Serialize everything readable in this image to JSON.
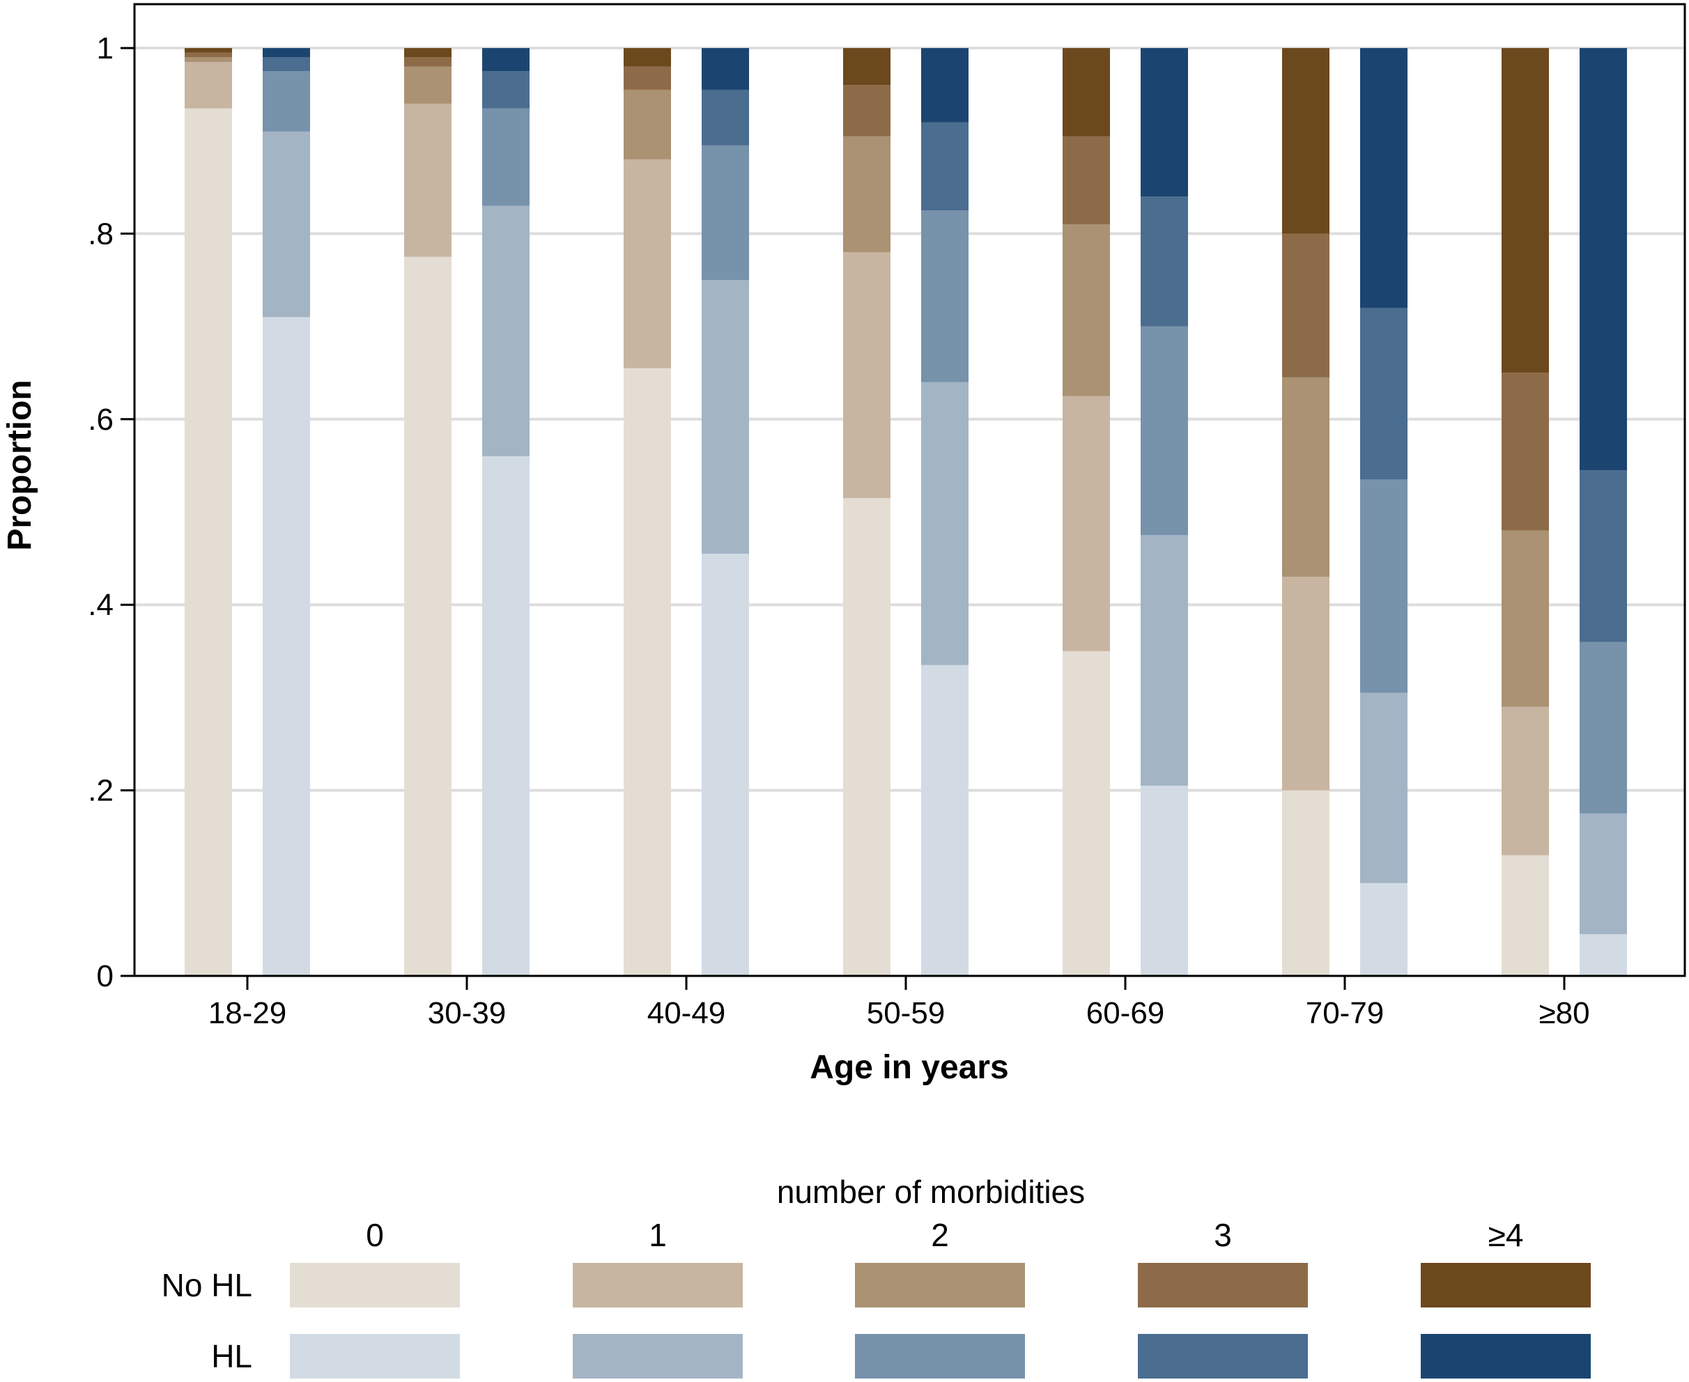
{
  "chart_data": {
    "type": "bar",
    "stacked": true,
    "xlabel": "Age in years",
    "ylabel": "Proportion",
    "ylim": [
      0,
      1
    ],
    "yticks": [
      0,
      0.2,
      0.4,
      0.6,
      0.8,
      1
    ],
    "ytick_labels": [
      "0",
      ".2",
      ".4",
      ".6",
      ".8",
      "1"
    ],
    "grid": true,
    "categories": [
      "18-29",
      "30-39",
      "40-49",
      "50-59",
      "60-69",
      "70-79",
      "≥80"
    ],
    "groups": [
      "No HL",
      "HL"
    ],
    "legend_title": "number of morbidities",
    "legend_position": "bottom",
    "levels": [
      "0",
      "1",
      "2",
      "3",
      "≥4"
    ],
    "colors": {
      "No HL": [
        "#e4ddd3",
        "#c8b5a1",
        "#aa9273",
        "#8d6b48",
        "#6c481d"
      ],
      "HL": [
        "#d2dbe4",
        "#a3b4c5",
        "#7792ab",
        "#4a6d90",
        "#1b4570"
      ]
    },
    "series": [
      {
        "group": "No HL",
        "level": "0",
        "values": [
          0.935,
          0.775,
          0.655,
          0.515,
          0.35,
          0.2,
          0.13
        ]
      },
      {
        "group": "No HL",
        "level": "1",
        "values": [
          0.05,
          0.165,
          0.225,
          0.265,
          0.275,
          0.23,
          0.16
        ]
      },
      {
        "group": "No HL",
        "level": "2",
        "values": [
          0.005,
          0.04,
          0.075,
          0.125,
          0.185,
          0.215,
          0.19
        ]
      },
      {
        "group": "No HL",
        "level": "3",
        "values": [
          0.005,
          0.01,
          0.025,
          0.055,
          0.095,
          0.155,
          0.17
        ]
      },
      {
        "group": "No HL",
        "level": "≥4",
        "values": [
          0.005,
          0.01,
          0.02,
          0.04,
          0.095,
          0.2,
          0.35
        ]
      },
      {
        "group": "HL",
        "level": "0",
        "values": [
          0.71,
          0.56,
          0.455,
          0.335,
          0.205,
          0.1,
          0.045
        ]
      },
      {
        "group": "HL",
        "level": "1",
        "values": [
          0.2,
          0.27,
          0.295,
          0.305,
          0.27,
          0.205,
          0.13
        ]
      },
      {
        "group": "HL",
        "level": "2",
        "values": [
          0.065,
          0.105,
          0.145,
          0.185,
          0.225,
          0.23,
          0.185
        ]
      },
      {
        "group": "HL",
        "level": "3",
        "values": [
          0.015,
          0.04,
          0.06,
          0.095,
          0.14,
          0.185,
          0.185
        ]
      },
      {
        "group": "HL",
        "level": "≥4",
        "values": [
          0.01,
          0.025,
          0.045,
          0.08,
          0.16,
          0.28,
          0.455
        ]
      }
    ]
  }
}
